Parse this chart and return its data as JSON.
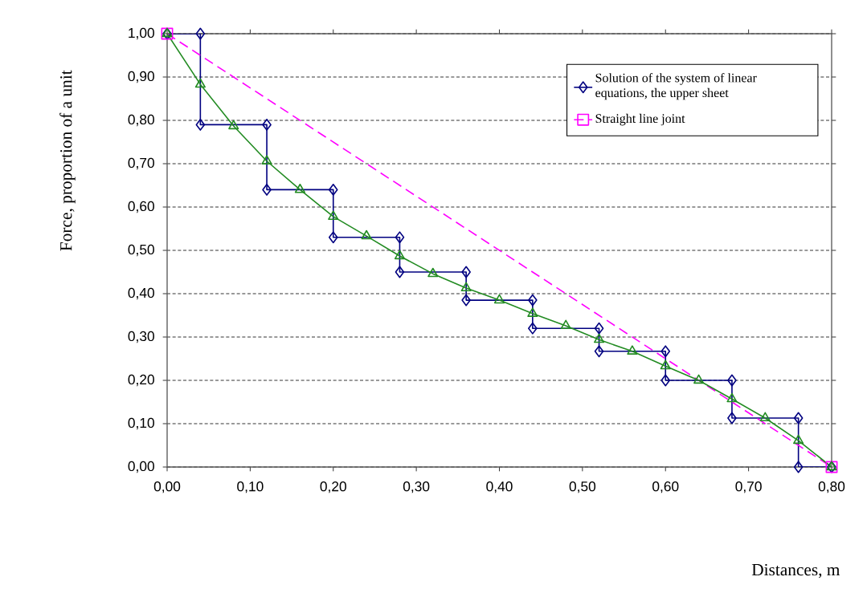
{
  "chart_data": {
    "type": "line",
    "xlabel": "Distances, m",
    "ylabel": "Force, proportion of a unit",
    "xlim": [
      0,
      0.8
    ],
    "ylim": [
      0,
      1
    ],
    "xticks": [
      {
        "value": 0,
        "label": "0,00"
      },
      {
        "value": 0.1,
        "label": "0,10"
      },
      {
        "value": 0.2,
        "label": "0,20"
      },
      {
        "value": 0.3,
        "label": "0,30"
      },
      {
        "value": 0.4,
        "label": "0,40"
      },
      {
        "value": 0.5,
        "label": "0,50"
      },
      {
        "value": 0.6,
        "label": "0,60"
      },
      {
        "value": 0.7,
        "label": "0,70"
      },
      {
        "value": 0.8,
        "label": "0,80"
      }
    ],
    "yticks": [
      {
        "value": 0,
        "label": "0,00"
      },
      {
        "value": 0.1,
        "label": "0,10"
      },
      {
        "value": 0.2,
        "label": "0,20"
      },
      {
        "value": 0.3,
        "label": "0,30"
      },
      {
        "value": 0.4,
        "label": "0,40"
      },
      {
        "value": 0.5,
        "label": "0,50"
      },
      {
        "value": 0.6,
        "label": "0,60"
      },
      {
        "value": 0.7,
        "label": "0,70"
      },
      {
        "value": 0.8,
        "label": "0,80"
      },
      {
        "value": 0.9,
        "label": "0,90"
      },
      {
        "value": 1,
        "label": "1,00"
      }
    ],
    "grid": "y",
    "legend": "top right",
    "series": [
      {
        "name": "Solution of the system of linear equations, the upper sheet",
        "color": "#000080",
        "marker": "diamond",
        "line_style": "solid",
        "x": [
          0,
          0.04,
          0.04,
          0.12,
          0.12,
          0.2,
          0.2,
          0.28,
          0.28,
          0.36,
          0.36,
          0.44,
          0.44,
          0.52,
          0.52,
          0.6,
          0.6,
          0.68,
          0.68,
          0.76,
          0.76,
          0.8
        ],
        "values": [
          1,
          1,
          0.79,
          0.79,
          0.64,
          0.64,
          0.53,
          0.53,
          0.45,
          0.45,
          0.385,
          0.385,
          0.32,
          0.32,
          0.267,
          0.267,
          0.2,
          0.2,
          0.113,
          0.113,
          0,
          0
        ]
      },
      {
        "name": "Straight line joint",
        "color": "#ff00ff",
        "marker": "square",
        "line_style": "dashed",
        "x": [
          0,
          0.8
        ],
        "values": [
          1,
          0
        ]
      },
      {
        "color": "#228b22",
        "marker": "triangle",
        "line_style": "solid",
        "x": [
          0,
          0.04,
          0.08,
          0.12,
          0.16,
          0.2,
          0.24,
          0.28,
          0.32,
          0.36,
          0.4,
          0.44,
          0.48,
          0.52,
          0.56,
          0.6,
          0.64,
          0.68,
          0.72,
          0.76,
          0.8
        ],
        "values": [
          1,
          0.883,
          0.787,
          0.706,
          0.64,
          0.578,
          0.533,
          0.487,
          0.446,
          0.413,
          0.385,
          0.354,
          0.326,
          0.294,
          0.267,
          0.233,
          0.2,
          0.157,
          0.113,
          0.061,
          0
        ]
      }
    ]
  }
}
